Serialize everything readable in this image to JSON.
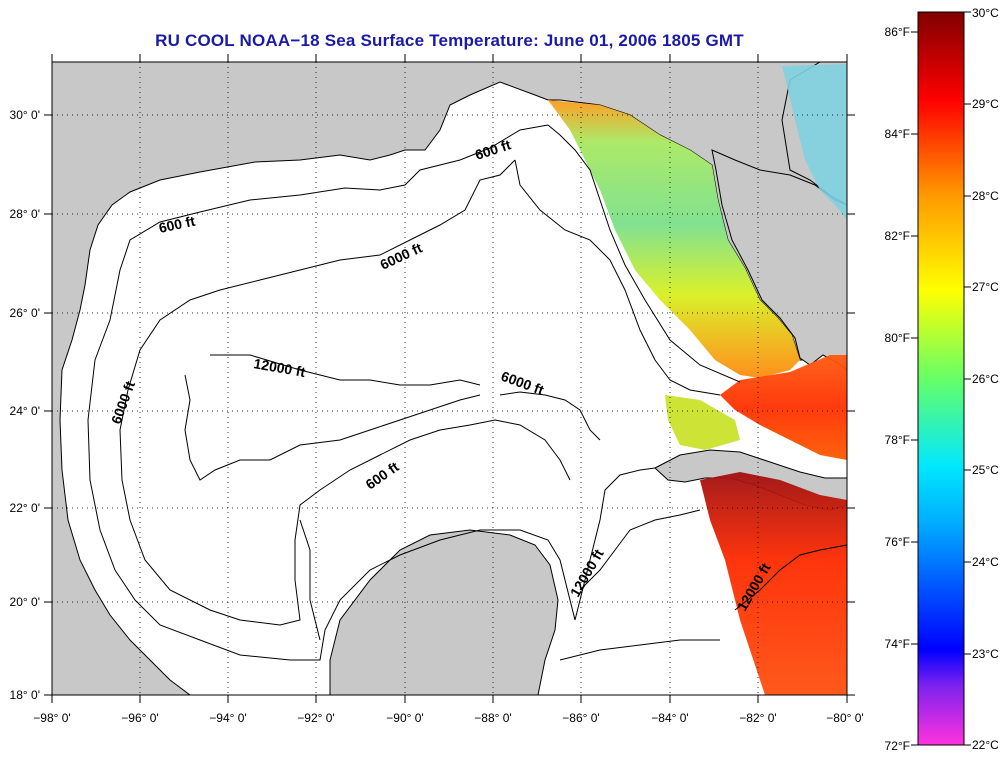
{
  "title": "RU COOL  NOAA−18  Sea Surface Temperature:  June 01, 2006 1805 GMT",
  "map": {
    "lon_ticks": [
      "−98° 0'",
      "−96° 0'",
      "−94° 0'",
      "−92° 0'",
      "−90° 0'",
      "−88° 0'",
      "−86° 0'",
      "−84° 0'",
      "−82° 0'",
      "−80° 0'"
    ],
    "lat_ticks": [
      "18° 0'",
      "20° 0'",
      "22° 0'",
      "24° 0'",
      "26° 0'",
      "28° 0'",
      "30° 0'"
    ],
    "contour_labels": [
      "600 ft",
      "600 ft",
      "600 ft",
      "6000 ft",
      "6000 ft",
      "6000 ft",
      "12000 ft",
      "12000 ft",
      "12000 ft"
    ],
    "land_color": "#c8c8c8",
    "water_color": "#ffffff"
  },
  "colorbar": {
    "fahrenheit_labels": [
      "86°F",
      "84°F",
      "82°F",
      "80°F",
      "78°F",
      "76°F",
      "74°F",
      "72°F"
    ],
    "celsius_labels": [
      "30°C",
      "29°C",
      "28°C",
      "27°C",
      "26°C",
      "25°C",
      "24°C",
      "23°C",
      "22°C"
    ],
    "min_c": 22,
    "max_c": 30,
    "colors": [
      "#ff33dd",
      "#0000ff",
      "#00e8ff",
      "#66ff66",
      "#ffff00",
      "#ff9900",
      "#ff0000",
      "#800000"
    ]
  }
}
